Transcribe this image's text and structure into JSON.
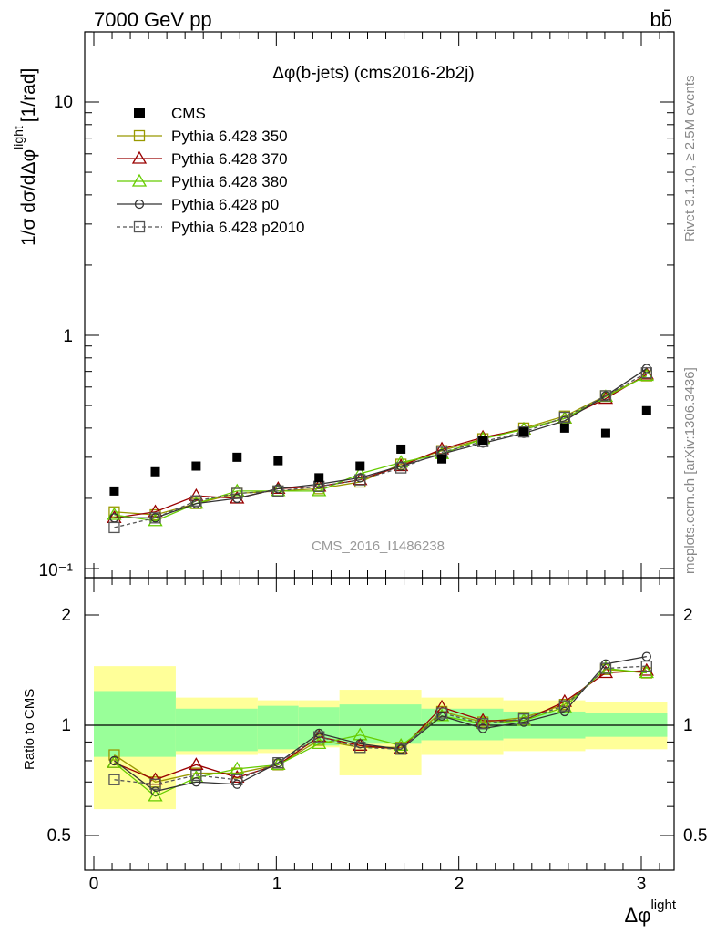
{
  "header": {
    "energy": "7000 GeV pp",
    "process": "bb̄"
  },
  "side_labels": {
    "rivet": "Rivet 3.1.10, ≥ 2.5M events",
    "mcplots": "mcplots.cern.ch [arXiv:1306.3436]"
  },
  "chart_data": {
    "type": "scatter",
    "title": "Δφ(b-jets) (cms2016-2b2j)",
    "watermark": "CMS_2016_I1486238",
    "xlabel": "Δφ",
    "xlabel_sup": "light",
    "ylabel": "1/σ dσ/dΔφ",
    "ylabel_sup": "light",
    "ylabel_unit": "[1/rad]",
    "ratio_ylabel": "Ratio to CMS",
    "xlim": [
      -0.05,
      3.2
    ],
    "ylim": [
      0.1,
      20
    ],
    "ratio_ylim": [
      0.4,
      2.4
    ],
    "yscale": "log",
    "x_ticks": [
      "0",
      "1",
      "2",
      "3"
    ],
    "y_ticks": [
      "10⁻¹",
      "1",
      "10"
    ],
    "ratio_ticks": [
      "0.5",
      "1",
      "2"
    ],
    "bin_edges": [
      0,
      0.449,
      0.898,
      1.346,
      1.795,
      2.244,
      2.693,
      3.142
    ],
    "band_edges": [
      0,
      0.449,
      0.898,
      1.122,
      1.346,
      1.795,
      2.244,
      2.693,
      3.142
    ],
    "band_inner": [
      [
        0.82,
        1.24
      ],
      [
        0.85,
        1.11
      ],
      [
        0.86,
        1.13
      ],
      [
        0.88,
        1.12
      ],
      [
        0.89,
        1.14
      ],
      [
        0.91,
        1.11
      ],
      [
        0.92,
        1.09
      ],
      [
        0.93,
        1.08
      ]
    ],
    "band_outer": [
      [
        0.59,
        1.45
      ],
      [
        0.83,
        1.19
      ],
      [
        0.84,
        1.17
      ],
      [
        0.87,
        1.17
      ],
      [
        0.73,
        1.25
      ],
      [
        0.83,
        1.19
      ],
      [
        0.85,
        1.17
      ],
      [
        0.86,
        1.16
      ]
    ],
    "x": [
      0.112,
      0.337,
      0.561,
      0.785,
      1.01,
      1.234,
      1.459,
      1.683,
      1.907,
      2.132,
      2.356,
      2.58,
      2.805,
      3.029
    ],
    "cms": [
      0.215,
      0.26,
      0.275,
      0.3,
      0.29,
      0.245,
      0.275,
      0.325,
      0.295,
      0.355,
      0.385,
      0.4,
      0.38,
      0.475
    ],
    "series": [
      {
        "name": "Pythia 6.428 350",
        "color": "#999900",
        "marker": "square",
        "dash": false,
        "values": [
          0.175,
          0.17,
          0.19,
          0.21,
          0.215,
          0.22,
          0.235,
          0.28,
          0.32,
          0.36,
          0.4,
          0.45,
          0.55,
          0.67
        ],
        "ratio": [
          0.83,
          0.7,
          0.74,
          0.74,
          0.78,
          0.91,
          0.87,
          0.87,
          1.09,
          1.02,
          1.05,
          1.14,
          1.42,
          1.39
        ]
      },
      {
        "name": "Pythia 6.428 370",
        "color": "#990000",
        "marker": "triangle",
        "dash": false,
        "values": [
          0.165,
          0.175,
          0.205,
          0.2,
          0.22,
          0.225,
          0.24,
          0.275,
          0.325,
          0.365,
          0.395,
          0.44,
          0.535,
          0.68
        ],
        "ratio": [
          0.79,
          0.71,
          0.78,
          0.72,
          0.78,
          0.93,
          0.88,
          0.86,
          1.12,
          1.03,
          1.03,
          1.16,
          1.39,
          1.41
        ]
      },
      {
        "name": "Pythia 6.428 380",
        "color": "#66cc00",
        "marker": "triangle",
        "dash": false,
        "values": [
          0.17,
          0.16,
          0.19,
          0.215,
          0.215,
          0.215,
          0.255,
          0.285,
          0.31,
          0.36,
          0.395,
          0.44,
          0.545,
          0.67
        ],
        "ratio": [
          0.79,
          0.64,
          0.72,
          0.76,
          0.78,
          0.89,
          0.94,
          0.88,
          1.06,
          1.01,
          1.03,
          1.12,
          1.43,
          1.39
        ]
      },
      {
        "name": "Pythia 6.428 p0",
        "color": "#333333",
        "marker": "circle",
        "dash": false,
        "values": [
          0.165,
          0.165,
          0.19,
          0.2,
          0.22,
          0.23,
          0.245,
          0.275,
          0.31,
          0.345,
          0.38,
          0.43,
          0.55,
          0.72
        ],
        "ratio": [
          0.8,
          0.66,
          0.7,
          0.69,
          0.79,
          0.95,
          0.89,
          0.86,
          1.06,
          0.98,
          1.02,
          1.09,
          1.47,
          1.54
        ]
      },
      {
        "name": "Pythia 6.428 p2010",
        "color": "#555555",
        "marker": "square",
        "dash": true,
        "values": [
          0.15,
          0.165,
          0.195,
          0.21,
          0.215,
          0.225,
          0.24,
          0.27,
          0.315,
          0.35,
          0.385,
          0.445,
          0.55,
          0.69
        ],
        "ratio": [
          0.71,
          0.69,
          0.73,
          0.71,
          0.79,
          0.93,
          0.87,
          0.86,
          1.08,
          1.01,
          1.04,
          1.13,
          1.43,
          1.45
        ]
      }
    ]
  }
}
